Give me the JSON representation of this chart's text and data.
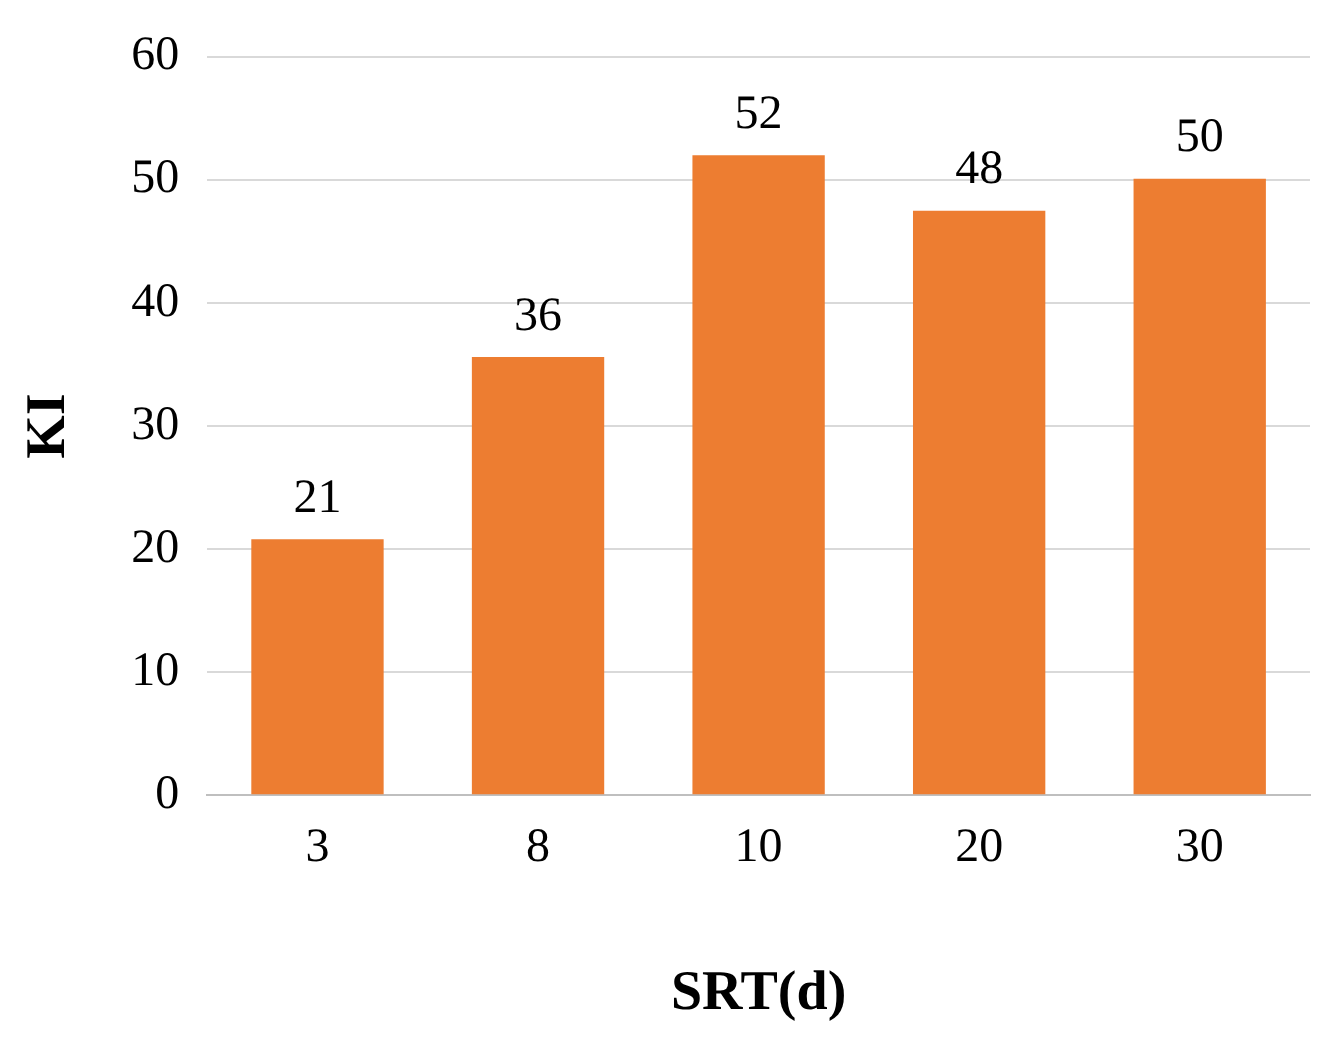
{
  "chart_data": {
    "type": "bar",
    "xlabel": "SRT(d)",
    "ylabel": "KI",
    "categories": [
      "3",
      "8",
      "10",
      "20",
      "30"
    ],
    "values": [
      20.8,
      35.6,
      52,
      47.5,
      50.1
    ],
    "value_labels": [
      "21",
      "36",
      "52",
      "48",
      "50"
    ],
    "color": "#ed7d31",
    "ylim": [
      0,
      60
    ],
    "yticks": [
      0,
      10,
      20,
      30,
      40,
      50,
      60
    ],
    "grid": "y",
    "legend": false
  }
}
